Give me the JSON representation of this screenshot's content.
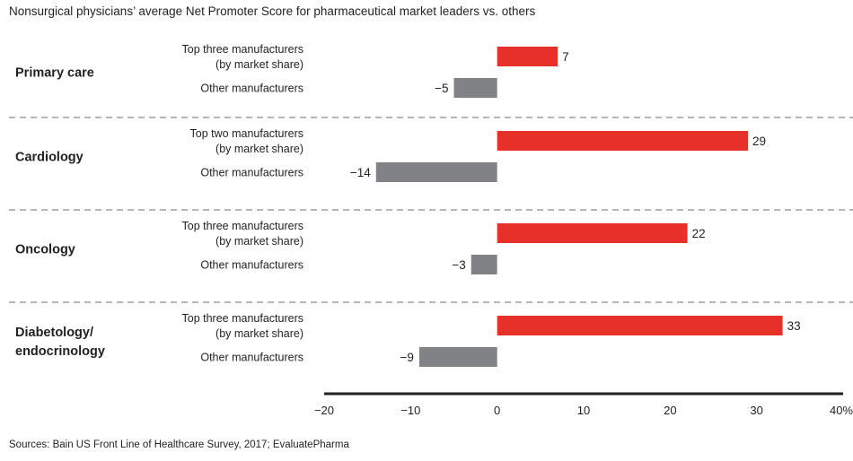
{
  "title": "Nonsurgical physicians’ average Net Promoter Score for pharmaceutical market leaders vs. others",
  "source": "Sources: Bain US Front Line of Healthcare Survey, 2017; EvaluatePharma",
  "colors": {
    "leader": "#e8302a",
    "other": "#818285",
    "axis": "#231f20",
    "divider": "#8a8a8a"
  },
  "chart_data": {
    "type": "bar",
    "orientation": "horizontal",
    "xlim": [
      -20,
      40
    ],
    "x_ticks": [
      "−20",
      "−10",
      "0",
      "10",
      "20",
      "30",
      "40%"
    ],
    "groups": [
      {
        "category": [
          "Primary care"
        ],
        "bars": [
          {
            "label": [
              "Top three manufacturers",
              "(by market share)"
            ],
            "value": 7,
            "value_label": "7",
            "kind": "leader"
          },
          {
            "label": [
              "Other manufacturers"
            ],
            "value": -5,
            "value_label": "−5",
            "kind": "other"
          }
        ]
      },
      {
        "category": [
          "Cardiology"
        ],
        "bars": [
          {
            "label": [
              "Top two manufacturers",
              "(by market share)"
            ],
            "value": 29,
            "value_label": "29",
            "kind": "leader"
          },
          {
            "label": [
              "Other manufacturers"
            ],
            "value": -14,
            "value_label": "−14",
            "kind": "other"
          }
        ]
      },
      {
        "category": [
          "Oncology"
        ],
        "bars": [
          {
            "label": [
              "Top three manufacturers",
              "(by market share)"
            ],
            "value": 22,
            "value_label": "22",
            "kind": "leader"
          },
          {
            "label": [
              "Other manufacturers"
            ],
            "value": -3,
            "value_label": "−3",
            "kind": "other"
          }
        ]
      },
      {
        "category": [
          "Diabetology/",
          "endocrinology"
        ],
        "bars": [
          {
            "label": [
              "Top three manufacturers",
              "(by market share)"
            ],
            "value": 33,
            "value_label": "33",
            "kind": "leader"
          },
          {
            "label": [
              "Other manufacturers"
            ],
            "value": -9,
            "value_label": "−9",
            "kind": "other"
          }
        ]
      }
    ]
  }
}
